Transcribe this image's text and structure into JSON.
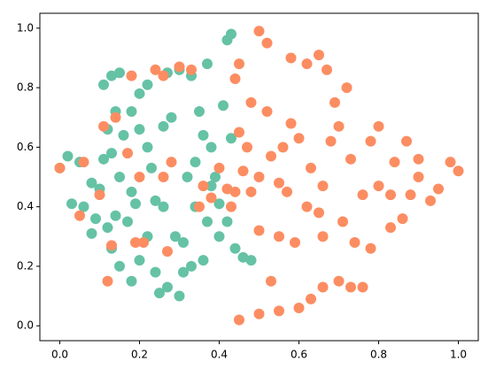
{
  "chart_data": {
    "type": "scatter",
    "series": [
      {
        "color": "#66c2a5",
        "x": [
          0.0,
          0.02,
          0.05,
          0.03,
          0.06,
          0.08,
          0.1,
          0.08,
          0.12,
          0.11,
          0.13,
          0.11,
          0.13,
          0.15,
          0.14,
          0.18,
          0.16,
          0.2,
          0.15,
          0.18,
          0.14,
          0.17,
          0.13,
          0.15,
          0.18,
          0.2,
          0.2,
          0.22,
          0.22,
          0.23,
          0.24,
          0.22,
          0.24,
          0.25,
          0.27,
          0.26,
          0.28,
          0.27,
          0.3,
          0.29,
          0.31,
          0.3,
          0.33,
          0.32,
          0.34,
          0.33,
          0.35,
          0.37,
          0.36,
          0.38,
          0.39,
          0.37,
          0.36,
          0.4,
          0.4,
          0.41,
          0.42,
          0.43,
          0.43,
          0.44,
          0.46,
          0.48,
          0.34,
          0.38,
          0.42,
          0.09,
          0.12,
          0.19,
          0.26,
          0.31
        ],
        "y": [
          0.53,
          0.57,
          0.55,
          0.41,
          0.4,
          0.48,
          0.46,
          0.31,
          0.33,
          0.56,
          0.58,
          0.81,
          0.84,
          0.85,
          0.72,
          0.72,
          0.64,
          0.66,
          0.5,
          0.45,
          0.37,
          0.35,
          0.26,
          0.2,
          0.15,
          0.22,
          0.78,
          0.81,
          0.6,
          0.53,
          0.42,
          0.3,
          0.18,
          0.11,
          0.13,
          0.67,
          0.7,
          0.85,
          0.86,
          0.3,
          0.18,
          0.1,
          0.2,
          0.5,
          0.55,
          0.84,
          0.72,
          0.88,
          0.64,
          0.6,
          0.5,
          0.35,
          0.22,
          0.3,
          0.41,
          0.74,
          0.96,
          0.98,
          0.63,
          0.26,
          0.23,
          0.22,
          0.4,
          0.47,
          0.35,
          0.36,
          0.66,
          0.41,
          0.4,
          0.28
        ]
      },
      {
        "color": "#fc8d62",
        "x": [
          0.0,
          0.05,
          0.06,
          0.1,
          0.11,
          0.14,
          0.12,
          0.13,
          0.18,
          0.17,
          0.19,
          0.21,
          0.2,
          0.24,
          0.26,
          0.26,
          0.28,
          0.27,
          0.3,
          0.33,
          0.35,
          0.36,
          0.38,
          0.4,
          0.42,
          0.44,
          0.44,
          0.45,
          0.45,
          0.47,
          0.46,
          0.48,
          0.5,
          0.5,
          0.52,
          0.48,
          0.52,
          0.53,
          0.55,
          0.57,
          0.56,
          0.58,
          0.6,
          0.58,
          0.62,
          0.65,
          0.67,
          0.63,
          0.62,
          0.65,
          0.66,
          0.68,
          0.7,
          0.69,
          0.72,
          0.73,
          0.71,
          0.74,
          0.73,
          0.7,
          0.76,
          0.78,
          0.76,
          0.8,
          0.78,
          0.8,
          0.84,
          0.83,
          0.83,
          0.86,
          0.88,
          0.87,
          0.9,
          0.9,
          0.93,
          0.95,
          0.98,
          1.0,
          0.45,
          0.5,
          0.55,
          0.6,
          0.63,
          0.66,
          0.53,
          0.5,
          0.55,
          0.59,
          0.66,
          0.43
        ],
        "y": [
          0.53,
          0.37,
          0.55,
          0.44,
          0.67,
          0.7,
          0.15,
          0.27,
          0.84,
          0.58,
          0.28,
          0.28,
          0.5,
          0.86,
          0.84,
          0.5,
          0.55,
          0.25,
          0.87,
          0.86,
          0.4,
          0.47,
          0.43,
          0.53,
          0.46,
          0.45,
          0.83,
          0.88,
          0.65,
          0.6,
          0.52,
          0.45,
          0.5,
          0.99,
          0.95,
          0.75,
          0.72,
          0.57,
          0.48,
          0.45,
          0.6,
          0.68,
          0.63,
          0.9,
          0.88,
          0.91,
          0.86,
          0.53,
          0.4,
          0.38,
          0.47,
          0.62,
          0.67,
          0.75,
          0.8,
          0.56,
          0.35,
          0.28,
          0.13,
          0.15,
          0.13,
          0.26,
          0.44,
          0.47,
          0.62,
          0.67,
          0.55,
          0.44,
          0.33,
          0.36,
          0.44,
          0.62,
          0.5,
          0.56,
          0.42,
          0.46,
          0.55,
          0.52,
          0.02,
          0.04,
          0.05,
          0.06,
          0.09,
          0.13,
          0.15,
          0.32,
          0.3,
          0.28,
          0.3,
          0.4
        ]
      }
    ],
    "xlim": [
      -0.05,
      1.05
    ],
    "ylim": [
      -0.05,
      1.05
    ],
    "xticks": [
      {
        "value": 0,
        "label": "0.0"
      },
      {
        "value": 0.2,
        "label": "0.2"
      },
      {
        "value": 0.4,
        "label": "0.4"
      },
      {
        "value": 0.6,
        "label": "0.6"
      },
      {
        "value": 0.8,
        "label": "0.8"
      },
      {
        "value": 1,
        "label": "1.0"
      }
    ],
    "yticks": [
      {
        "value": 0,
        "label": "0.0"
      },
      {
        "value": 0.2,
        "label": "0.2"
      },
      {
        "value": 0.4,
        "label": "0.4"
      },
      {
        "value": 0.6,
        "label": "0.6"
      },
      {
        "value": 0.8,
        "label": "0.8"
      },
      {
        "value": 1,
        "label": "1.0"
      }
    ]
  }
}
